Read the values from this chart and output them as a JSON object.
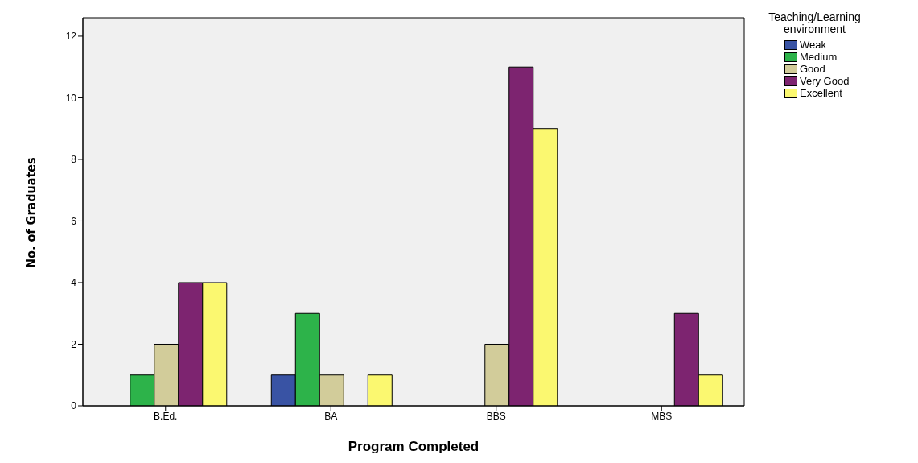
{
  "chart_data": {
    "type": "bar",
    "xlabel": "Program Completed",
    "ylabel": "No. of Graduates",
    "legend_title": "Teaching/Learning environment",
    "categories": [
      "B.Ed.",
      "BA",
      "BBS",
      "MBS"
    ],
    "series": [
      {
        "name": "Weak",
        "color": "#3953a4",
        "values": [
          null,
          1,
          null,
          null
        ]
      },
      {
        "name": "Medium",
        "color": "#2db34a",
        "values": [
          1,
          3,
          null,
          null
        ]
      },
      {
        "name": "Good",
        "color": "#d2cc9a",
        "values": [
          2,
          1,
          2,
          null
        ]
      },
      {
        "name": "Very Good",
        "color": "#7d2470",
        "values": [
          4,
          null,
          11,
          3
        ]
      },
      {
        "name": "Excellent",
        "color": "#fbf870",
        "values": [
          4,
          1,
          9,
          1
        ]
      }
    ],
    "ylim": [
      0,
      12.6
    ],
    "yticks": [
      0,
      2,
      4,
      6,
      8,
      10,
      12
    ],
    "legend": "top right"
  }
}
